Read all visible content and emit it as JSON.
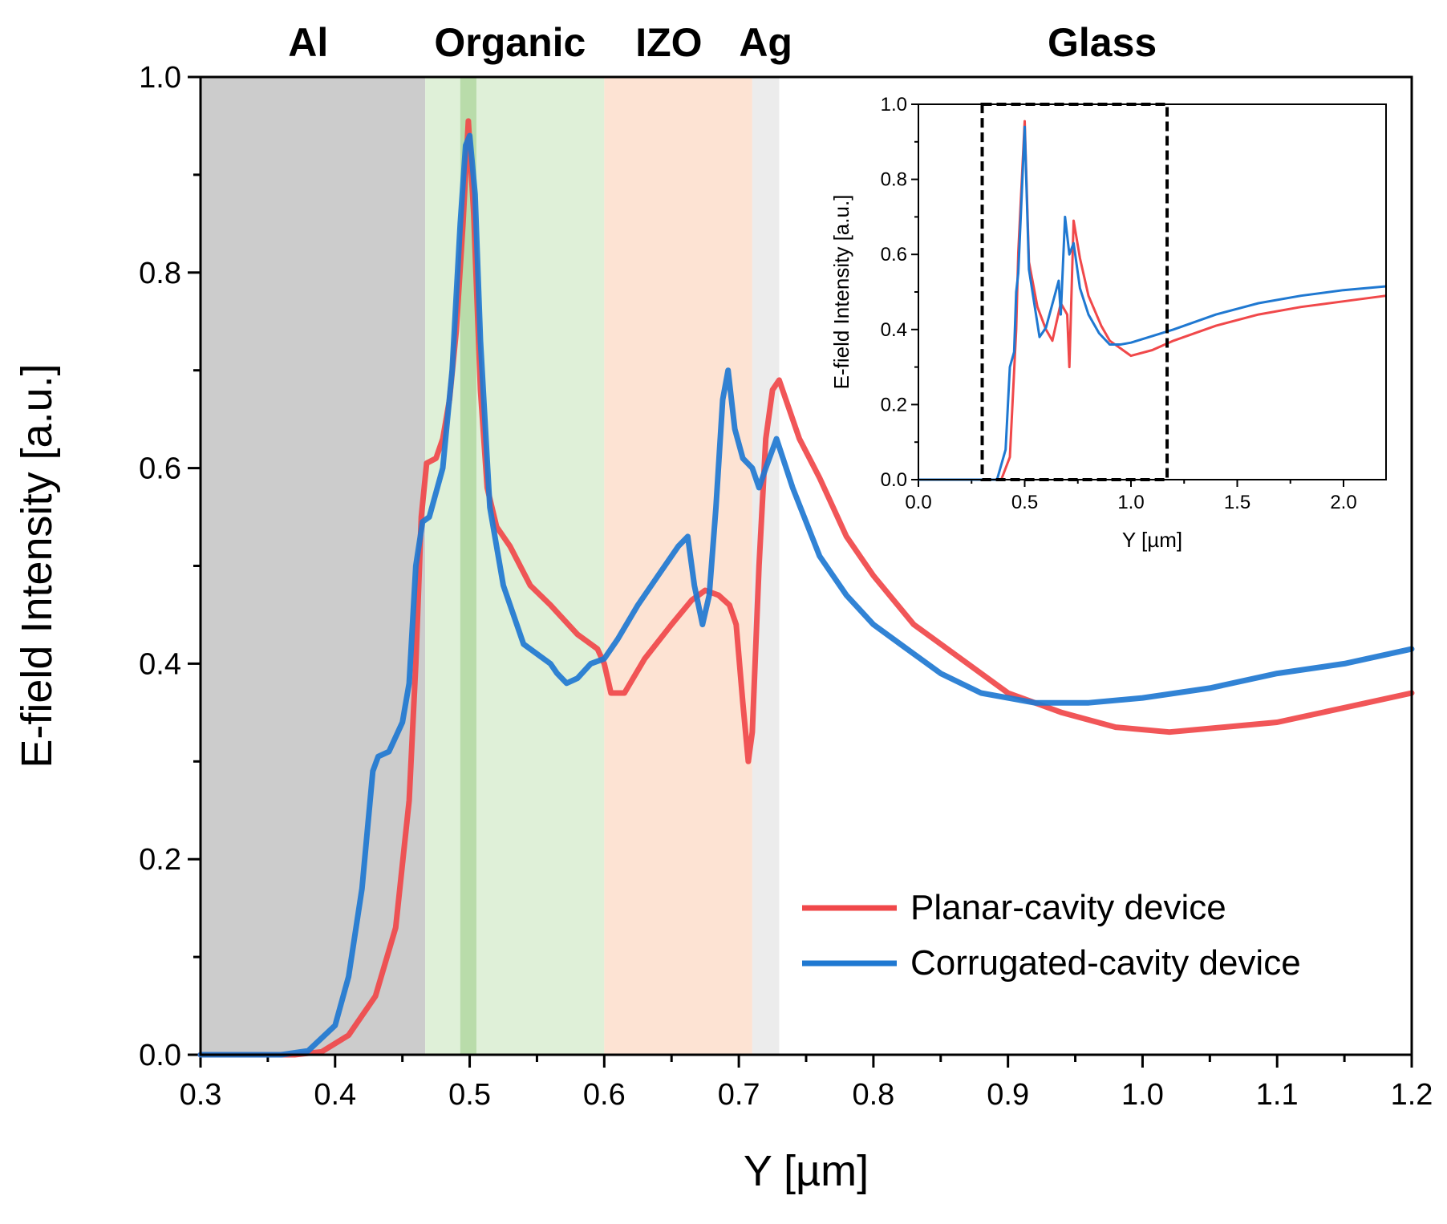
{
  "chart_data": [
    {
      "type": "line",
      "xlabel": "Y [µm]",
      "ylabel": "E-field Intensity [a.u.]",
      "xlim": [
        0.3,
        1.2
      ],
      "ylim": [
        0.0,
        1.0
      ],
      "xticks": [
        "0.3",
        "0.4",
        "0.5",
        "0.6",
        "0.7",
        "0.8",
        "0.9",
        "1.0",
        "1.1",
        "1.2"
      ],
      "yticks": [
        "0.0",
        "0.2",
        "0.4",
        "0.6",
        "0.8",
        "1.0"
      ],
      "regions": [
        {
          "label": "Al",
          "x0": 0.3,
          "x1": 0.467,
          "color": "#cccccc"
        },
        {
          "label": "Organic",
          "x0": 0.467,
          "x1": 0.6,
          "color": "#dff0d8"
        },
        {
          "label": "",
          "x0": 0.493,
          "x1": 0.505,
          "color": "#b9dcaa"
        },
        {
          "label": "IZO",
          "x0": 0.6,
          "x1": 0.71,
          "color": "#fde3d3"
        },
        {
          "label": "Ag",
          "x0": 0.71,
          "x1": 0.73,
          "color": "#ececec"
        },
        {
          "label": "Glass",
          "x0": 0.73,
          "x1": 1.2,
          "color": "#ffffff"
        }
      ],
      "legend": "bottom-right",
      "series": [
        {
          "name": "Planar-cavity device",
          "color": "#f0484a",
          "x": [
            0.3,
            0.37,
            0.39,
            0.41,
            0.43,
            0.445,
            0.455,
            0.46,
            0.464,
            0.468,
            0.475,
            0.48,
            0.485,
            0.49,
            0.495,
            0.499,
            0.503,
            0.508,
            0.513,
            0.52,
            0.53,
            0.545,
            0.56,
            0.58,
            0.595,
            0.6,
            0.605,
            0.615,
            0.63,
            0.65,
            0.665,
            0.675,
            0.685,
            0.693,
            0.698,
            0.703,
            0.707,
            0.71,
            0.715,
            0.72,
            0.725,
            0.73,
            0.745,
            0.76,
            0.78,
            0.8,
            0.83,
            0.86,
            0.9,
            0.94,
            0.98,
            1.02,
            1.06,
            1.1,
            1.15,
            1.2
          ],
          "y": [
            0.0,
            0.0,
            0.003,
            0.02,
            0.06,
            0.13,
            0.26,
            0.4,
            0.55,
            0.605,
            0.61,
            0.63,
            0.67,
            0.74,
            0.85,
            0.955,
            0.86,
            0.68,
            0.58,
            0.54,
            0.52,
            0.48,
            0.46,
            0.43,
            0.415,
            0.4,
            0.37,
            0.37,
            0.405,
            0.44,
            0.465,
            0.475,
            0.47,
            0.46,
            0.44,
            0.36,
            0.3,
            0.33,
            0.5,
            0.63,
            0.68,
            0.69,
            0.63,
            0.59,
            0.53,
            0.49,
            0.44,
            0.41,
            0.37,
            0.35,
            0.335,
            0.33,
            0.335,
            0.34,
            0.355,
            0.37
          ]
        },
        {
          "name": "Corrugated-cavity device",
          "color": "#1f78d1",
          "x": [
            0.3,
            0.36,
            0.38,
            0.4,
            0.41,
            0.42,
            0.428,
            0.432,
            0.44,
            0.45,
            0.455,
            0.46,
            0.465,
            0.47,
            0.48,
            0.487,
            0.493,
            0.497,
            0.5,
            0.504,
            0.508,
            0.515,
            0.525,
            0.54,
            0.555,
            0.56,
            0.565,
            0.572,
            0.58,
            0.59,
            0.6,
            0.61,
            0.625,
            0.64,
            0.655,
            0.662,
            0.667,
            0.673,
            0.678,
            0.683,
            0.688,
            0.692,
            0.697,
            0.703,
            0.71,
            0.715,
            0.72,
            0.728,
            0.74,
            0.76,
            0.78,
            0.8,
            0.82,
            0.85,
            0.88,
            0.92,
            0.96,
            1.0,
            1.05,
            1.1,
            1.15,
            1.2
          ],
          "y": [
            0.0,
            0.0,
            0.004,
            0.03,
            0.08,
            0.17,
            0.29,
            0.305,
            0.31,
            0.34,
            0.38,
            0.5,
            0.545,
            0.55,
            0.6,
            0.7,
            0.85,
            0.93,
            0.94,
            0.88,
            0.73,
            0.56,
            0.48,
            0.42,
            0.405,
            0.4,
            0.39,
            0.38,
            0.385,
            0.4,
            0.405,
            0.425,
            0.46,
            0.49,
            0.52,
            0.53,
            0.48,
            0.44,
            0.47,
            0.56,
            0.67,
            0.7,
            0.64,
            0.61,
            0.6,
            0.58,
            0.6,
            0.63,
            0.58,
            0.51,
            0.47,
            0.44,
            0.42,
            0.39,
            0.37,
            0.36,
            0.36,
            0.365,
            0.375,
            0.39,
            0.4,
            0.415
          ]
        }
      ]
    },
    {
      "type": "line",
      "role": "inset",
      "xlabel": "Y [µm]",
      "ylabel": "E-field Intensity [a.u.]",
      "xlim": [
        0.0,
        2.2
      ],
      "ylim": [
        0.0,
        1.0
      ],
      "xticks": [
        "0.0",
        "0.5",
        "1.0",
        "1.5",
        "2.0"
      ],
      "yticks": [
        "0.0",
        "0.2",
        "0.4",
        "0.6",
        "0.8",
        "1.0"
      ],
      "highlight_box": {
        "x0": 0.3,
        "x1": 1.17,
        "y0": 0.0,
        "y1": 1.0
      },
      "series": [
        {
          "name": "Planar-cavity device",
          "color": "#f0484a",
          "x": [
            0.0,
            0.39,
            0.43,
            0.46,
            0.47,
            0.5,
            0.52,
            0.56,
            0.6,
            0.63,
            0.67,
            0.7,
            0.71,
            0.73,
            0.76,
            0.8,
            0.86,
            0.9,
            1.0,
            1.1,
            1.2,
            1.4,
            1.6,
            1.8,
            2.0,
            2.2
          ],
          "y": [
            0.0,
            0.0,
            0.06,
            0.4,
            0.605,
            0.955,
            0.58,
            0.46,
            0.4,
            0.37,
            0.47,
            0.44,
            0.3,
            0.69,
            0.59,
            0.49,
            0.41,
            0.37,
            0.33,
            0.345,
            0.37,
            0.41,
            0.44,
            0.46,
            0.475,
            0.49
          ]
        },
        {
          "name": "Corrugated-cavity device",
          "color": "#1f78d1",
          "x": [
            0.0,
            0.37,
            0.41,
            0.43,
            0.45,
            0.46,
            0.47,
            0.5,
            0.52,
            0.57,
            0.6,
            0.66,
            0.67,
            0.69,
            0.71,
            0.73,
            0.76,
            0.8,
            0.85,
            0.9,
            0.95,
            1.0,
            1.2,
            1.4,
            1.6,
            1.8,
            2.0,
            2.2
          ],
          "y": [
            0.0,
            0.0,
            0.08,
            0.3,
            0.34,
            0.5,
            0.55,
            0.94,
            0.56,
            0.38,
            0.405,
            0.53,
            0.44,
            0.7,
            0.6,
            0.63,
            0.51,
            0.44,
            0.39,
            0.36,
            0.36,
            0.365,
            0.4,
            0.44,
            0.47,
            0.49,
            0.505,
            0.515
          ]
        }
      ]
    }
  ]
}
